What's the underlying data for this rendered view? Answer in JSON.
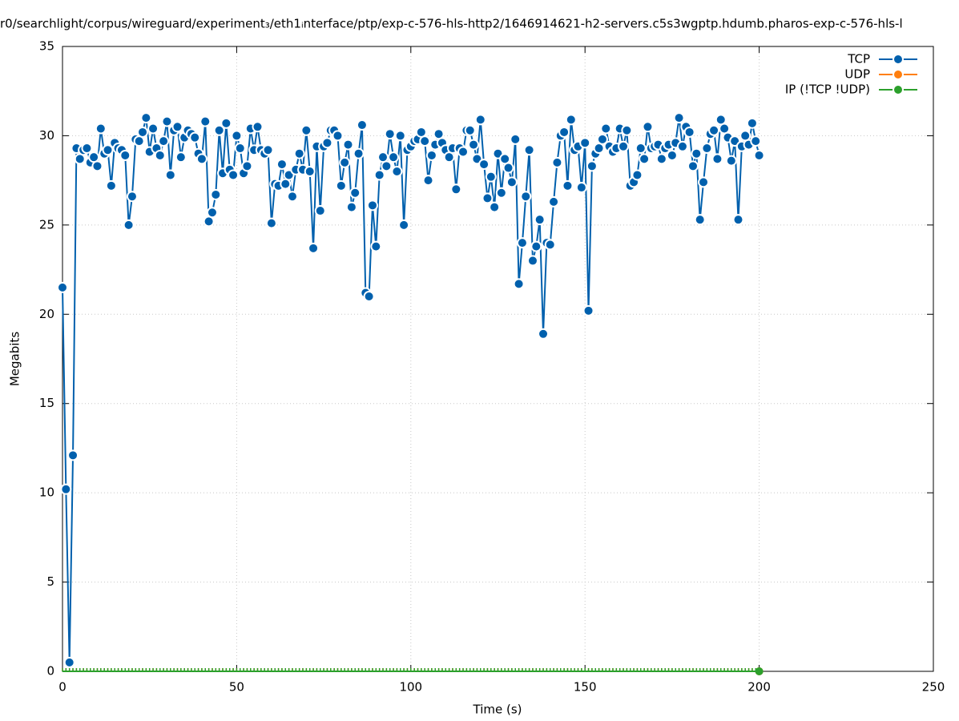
{
  "chart_data": {
    "type": "line",
    "title": "r0/searchlight/corpus/wireguard/experiment₃/eth1ᵢnterface/ptp/exp-c-576-hls-http2/1646914621-h2-servers.c5s3wgptp.hdumb.pharos-exp-c-576-hls-l",
    "xlabel": "Time (s)",
    "ylabel": "Megabits",
    "xlim": [
      0,
      250
    ],
    "xticks": [
      0,
      50,
      100,
      150,
      200,
      250
    ],
    "ylim": [
      0,
      35
    ],
    "yticks": [
      0,
      5,
      10,
      15,
      20,
      25,
      30,
      35
    ],
    "grid": true,
    "legend": "top-right",
    "x": [
      0,
      1,
      2,
      3,
      4,
      5,
      6,
      7,
      8,
      9,
      10,
      11,
      12,
      13,
      14,
      15,
      16,
      17,
      18,
      19,
      20,
      21,
      22,
      23,
      24,
      25,
      26,
      27,
      28,
      29,
      30,
      31,
      32,
      33,
      34,
      35,
      36,
      37,
      38,
      39,
      40,
      41,
      42,
      43,
      44,
      45,
      46,
      47,
      48,
      49,
      50,
      51,
      52,
      53,
      54,
      55,
      56,
      57,
      58,
      59,
      60,
      61,
      62,
      63,
      64,
      65,
      66,
      67,
      68,
      69,
      70,
      71,
      72,
      73,
      74,
      75,
      76,
      77,
      78,
      79,
      80,
      81,
      82,
      83,
      84,
      85,
      86,
      87,
      88,
      89,
      90,
      91,
      92,
      93,
      94,
      95,
      96,
      97,
      98,
      99,
      100,
      101,
      102,
      103,
      104,
      105,
      106,
      107,
      108,
      109,
      110,
      111,
      112,
      113,
      114,
      115,
      116,
      117,
      118,
      119,
      120,
      121,
      122,
      123,
      124,
      125,
      126,
      127,
      128,
      129,
      130,
      131,
      132,
      133,
      134,
      135,
      136,
      137,
      138,
      139,
      140,
      141,
      142,
      143,
      144,
      145,
      146,
      147,
      148,
      149,
      150,
      151,
      152,
      153,
      154,
      155,
      156,
      157,
      158,
      159,
      160,
      161,
      162,
      163,
      164,
      165,
      166,
      167,
      168,
      169,
      170,
      171,
      172,
      173,
      174,
      175,
      176,
      177,
      178,
      179,
      180,
      181,
      182,
      183,
      184,
      185,
      186,
      187,
      188,
      189,
      190,
      191,
      192,
      193,
      194,
      195,
      196,
      197,
      198,
      199,
      200
    ],
    "series": [
      {
        "name": "TCP",
        "color": "#0060ad",
        "values": [
          21.5,
          10.2,
          0.5,
          12.1,
          29.3,
          28.7,
          29.2,
          29.3,
          28.5,
          28.8,
          28.3,
          30.4,
          29.0,
          29.2,
          27.2,
          29.6,
          29.3,
          29.2,
          28.9,
          25.0,
          26.6,
          29.8,
          29.7,
          30.2,
          31.0,
          29.1,
          30.4,
          29.3,
          28.9,
          29.7,
          30.8,
          27.8,
          30.3,
          30.5,
          28.8,
          29.9,
          30.3,
          30.1,
          29.9,
          29.0,
          28.7,
          30.8,
          25.2,
          25.7,
          26.7,
          30.3,
          27.9,
          30.7,
          28.1,
          27.8,
          30.0,
          29.3,
          27.9,
          28.3,
          30.4,
          29.2,
          30.5,
          29.2,
          29.0,
          29.2,
          25.1,
          27.3,
          27.2,
          28.4,
          27.3,
          27.8,
          26.6,
          28.1,
          29.0,
          28.1,
          30.3,
          28.0,
          23.7,
          29.4,
          25.8,
          29.4,
          29.6,
          30.3,
          30.3,
          30.0,
          27.2,
          28.5,
          29.5,
          26.0,
          26.8,
          29.0,
          30.6,
          21.2,
          21.0,
          26.1,
          23.8,
          27.8,
          28.8,
          28.3,
          30.1,
          28.8,
          28.0,
          30.0,
          25.0,
          29.2,
          29.4,
          29.7,
          29.8,
          30.2,
          29.7,
          27.5,
          28.9,
          29.5,
          30.1,
          29.6,
          29.2,
          28.8,
          29.3,
          27.0,
          29.3,
          29.1,
          30.3,
          30.3,
          29.5,
          28.7,
          30.9,
          28.4,
          26.5,
          27.7,
          26.0,
          29.0,
          26.8,
          28.7,
          28.2,
          27.4,
          29.8,
          21.7,
          24.0,
          26.6,
          29.2,
          23.0,
          23.8,
          25.3,
          18.9,
          24.0,
          23.9,
          26.3,
          28.5,
          30.0,
          30.2,
          27.2,
          30.9,
          29.2,
          29.4,
          27.1,
          29.6,
          20.2,
          28.3,
          29.0,
          29.3,
          29.8,
          30.4,
          29.4,
          29.1,
          29.3,
          30.4,
          29.4,
          30.3,
          27.2,
          27.4,
          27.8,
          29.3,
          28.7,
          30.5,
          29.3,
          29.4,
          29.5,
          28.7,
          29.3,
          29.5,
          28.9,
          29.6,
          31.0,
          29.4,
          30.5,
          30.2,
          28.3,
          29.0,
          25.3,
          27.4,
          29.3,
          30.1,
          30.3,
          28.7,
          30.9,
          30.4,
          29.9,
          28.6,
          29.7,
          25.3,
          29.4,
          30.0,
          29.5,
          30.7,
          29.7,
          28.9
        ]
      },
      {
        "name": "UDP",
        "color": "#ff7f0e",
        "values": [
          0,
          0,
          0,
          0,
          0,
          0,
          0,
          0,
          0,
          0,
          0,
          0,
          0,
          0,
          0,
          0,
          0,
          0,
          0,
          0,
          0,
          0,
          0,
          0,
          0,
          0,
          0,
          0,
          0,
          0,
          0,
          0,
          0,
          0,
          0,
          0,
          0,
          0,
          0,
          0,
          0,
          0,
          0,
          0,
          0,
          0,
          0,
          0,
          0,
          0,
          0,
          0,
          0,
          0,
          0,
          0,
          0,
          0,
          0,
          0,
          0,
          0,
          0,
          0,
          0,
          0,
          0,
          0,
          0,
          0,
          0,
          0,
          0,
          0,
          0,
          0,
          0,
          0,
          0,
          0,
          0,
          0,
          0,
          0,
          0,
          0,
          0,
          0,
          0,
          0,
          0,
          0,
          0,
          0,
          0,
          0,
          0,
          0,
          0,
          0,
          0,
          0,
          0,
          0,
          0,
          0,
          0,
          0,
          0,
          0,
          0,
          0,
          0,
          0,
          0,
          0,
          0,
          0,
          0,
          0,
          0,
          0,
          0,
          0,
          0,
          0,
          0,
          0,
          0,
          0,
          0,
          0,
          0,
          0,
          0,
          0,
          0,
          0,
          0,
          0,
          0,
          0,
          0,
          0,
          0,
          0,
          0,
          0,
          0,
          0,
          0,
          0,
          0,
          0,
          0,
          0,
          0,
          0,
          0,
          0,
          0,
          0,
          0,
          0,
          0,
          0,
          0,
          0,
          0,
          0,
          0,
          0,
          0,
          0,
          0,
          0,
          0,
          0,
          0,
          0,
          0,
          0,
          0,
          0,
          0,
          0,
          0,
          0,
          0,
          0,
          0,
          0,
          0,
          0,
          0,
          0,
          0,
          0,
          0,
          0,
          0
        ]
      },
      {
        "name": "IP (!TCP  !UDP)",
        "color": "#2ca02c",
        "values": [
          0,
          0,
          0,
          0,
          0,
          0,
          0,
          0,
          0,
          0,
          0,
          0,
          0,
          0,
          0,
          0,
          0,
          0,
          0,
          0,
          0,
          0,
          0,
          0,
          0,
          0,
          0,
          0,
          0,
          0,
          0,
          0,
          0,
          0,
          0,
          0,
          0,
          0,
          0,
          0,
          0,
          0,
          0,
          0,
          0,
          0,
          0,
          0,
          0,
          0,
          0,
          0,
          0,
          0,
          0,
          0,
          0,
          0,
          0,
          0,
          0,
          0,
          0,
          0,
          0,
          0,
          0,
          0,
          0,
          0,
          0,
          0,
          0,
          0,
          0,
          0,
          0,
          0,
          0,
          0,
          0,
          0,
          0,
          0,
          0,
          0,
          0,
          0,
          0,
          0,
          0,
          0,
          0,
          0,
          0,
          0,
          0,
          0,
          0,
          0,
          0,
          0,
          0,
          0,
          0,
          0,
          0,
          0,
          0,
          0,
          0,
          0,
          0,
          0,
          0,
          0,
          0,
          0,
          0,
          0,
          0,
          0,
          0,
          0,
          0,
          0,
          0,
          0,
          0,
          0,
          0,
          0,
          0,
          0,
          0,
          0,
          0,
          0,
          0,
          0,
          0,
          0,
          0,
          0,
          0,
          0,
          0,
          0,
          0,
          0,
          0,
          0,
          0,
          0,
          0,
          0,
          0,
          0,
          0,
          0,
          0,
          0,
          0,
          0,
          0,
          0,
          0,
          0,
          0,
          0,
          0,
          0,
          0,
          0,
          0,
          0,
          0,
          0,
          0,
          0,
          0,
          0,
          0,
          0,
          0,
          0,
          0,
          0,
          0,
          0,
          0,
          0,
          0,
          0,
          0,
          0,
          0,
          0,
          0,
          0,
          0
        ]
      }
    ]
  }
}
